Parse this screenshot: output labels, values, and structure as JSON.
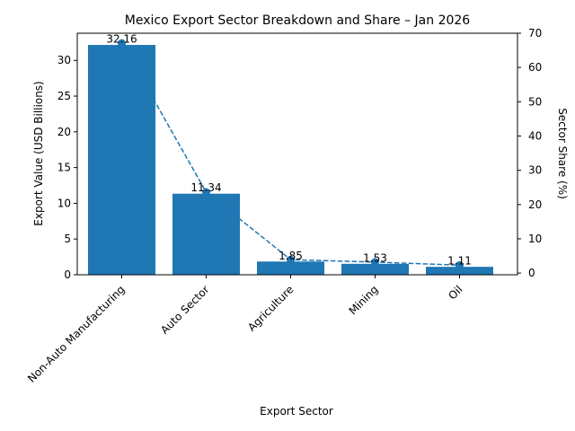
{
  "chart_data": {
    "type": "bar",
    "title": "Mexico Export Sector Breakdown and Share – Jan 2026",
    "xlabel": "Export Sector",
    "ylabel": "Export Value (USD Billions)",
    "y2label": "Sector Share (%)",
    "categories": [
      "Non-Auto Manufacturing",
      "Auto Sector",
      "Agriculture",
      "Mining",
      "Oil"
    ],
    "values": [
      32.16,
      11.34,
      1.85,
      1.53,
      1.11
    ],
    "value_labels": [
      "32.16",
      "11.34",
      "1.85",
      "1.53",
      "1.11"
    ],
    "share_values": [
      67.1,
      23.6,
      3.9,
      3.2,
      2.3
    ],
    "ylim": [
      0,
      33.8
    ],
    "y2lim": [
      -0.5,
      70
    ],
    "yticks": [
      0,
      5,
      10,
      15,
      20,
      25,
      30
    ],
    "y2ticks": [
      0,
      10,
      20,
      30,
      40,
      50,
      60,
      70
    ],
    "bar_color": "#1f77b4",
    "line_color": "#1f77b4",
    "line_style": "dashed",
    "grid": false
  }
}
